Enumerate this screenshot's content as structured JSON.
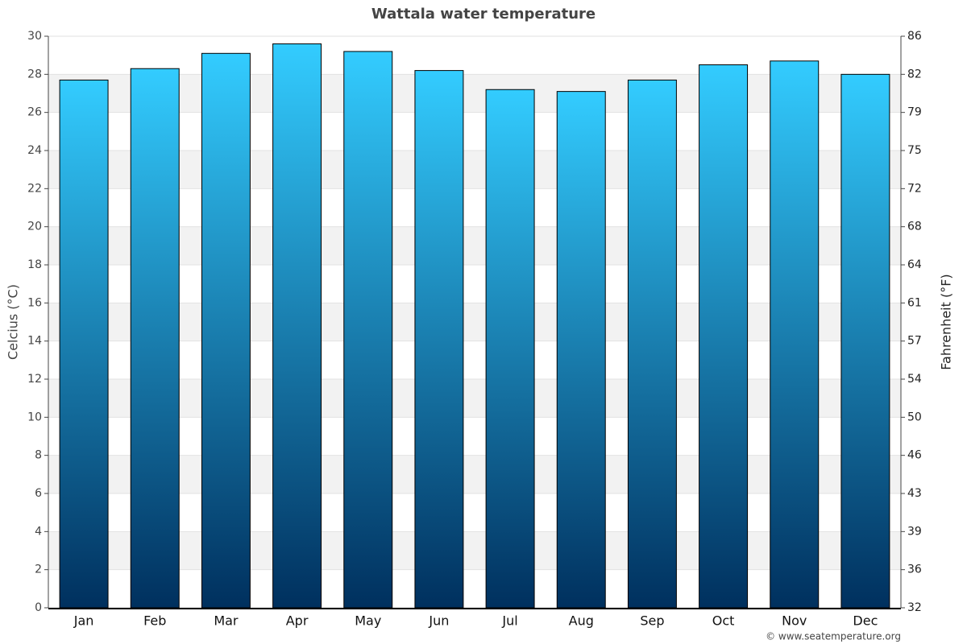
{
  "chart_data": {
    "type": "bar",
    "title": "Wattala water temperature",
    "categories": [
      "Jan",
      "Feb",
      "Mar",
      "Apr",
      "May",
      "Jun",
      "Jul",
      "Aug",
      "Sep",
      "Oct",
      "Nov",
      "Dec"
    ],
    "values": [
      27.7,
      28.3,
      29.1,
      29.6,
      29.2,
      28.2,
      27.2,
      27.1,
      27.7,
      28.5,
      28.7,
      28.0
    ],
    "gradient": [
      "#33ccff",
      "#00305e"
    ],
    "ylabel": "Celcius (°C)",
    "y2label": "Fahrenheit (°F)",
    "ylim": [
      0,
      30
    ],
    "yticks": [
      0,
      2,
      4,
      6,
      8,
      10,
      12,
      14,
      16,
      18,
      20,
      22,
      24,
      26,
      28,
      30
    ],
    "y2lim": [
      32,
      86
    ],
    "y2ticks": [
      32,
      {
        "value": 35.6,
        "label": "36"
      },
      {
        "value": 39.2,
        "label": "39"
      },
      {
        "value": 42.8,
        "label": "43"
      },
      {
        "value": 46.4,
        "label": "46"
      },
      50,
      {
        "value": 53.6,
        "label": "54"
      },
      {
        "value": 57.2,
        "label": "57"
      },
      {
        "value": 60.8,
        "label": "61"
      },
      {
        "value": 64.4,
        "label": "64"
      },
      68,
      {
        "value": 71.6,
        "label": "72"
      },
      {
        "value": 75.2,
        "label": "75"
      },
      {
        "value": 78.8,
        "label": "79"
      },
      {
        "value": 82.4,
        "label": "82"
      },
      86
    ],
    "grid": true,
    "banded": true,
    "credit": "© www.seatemperature.org"
  }
}
